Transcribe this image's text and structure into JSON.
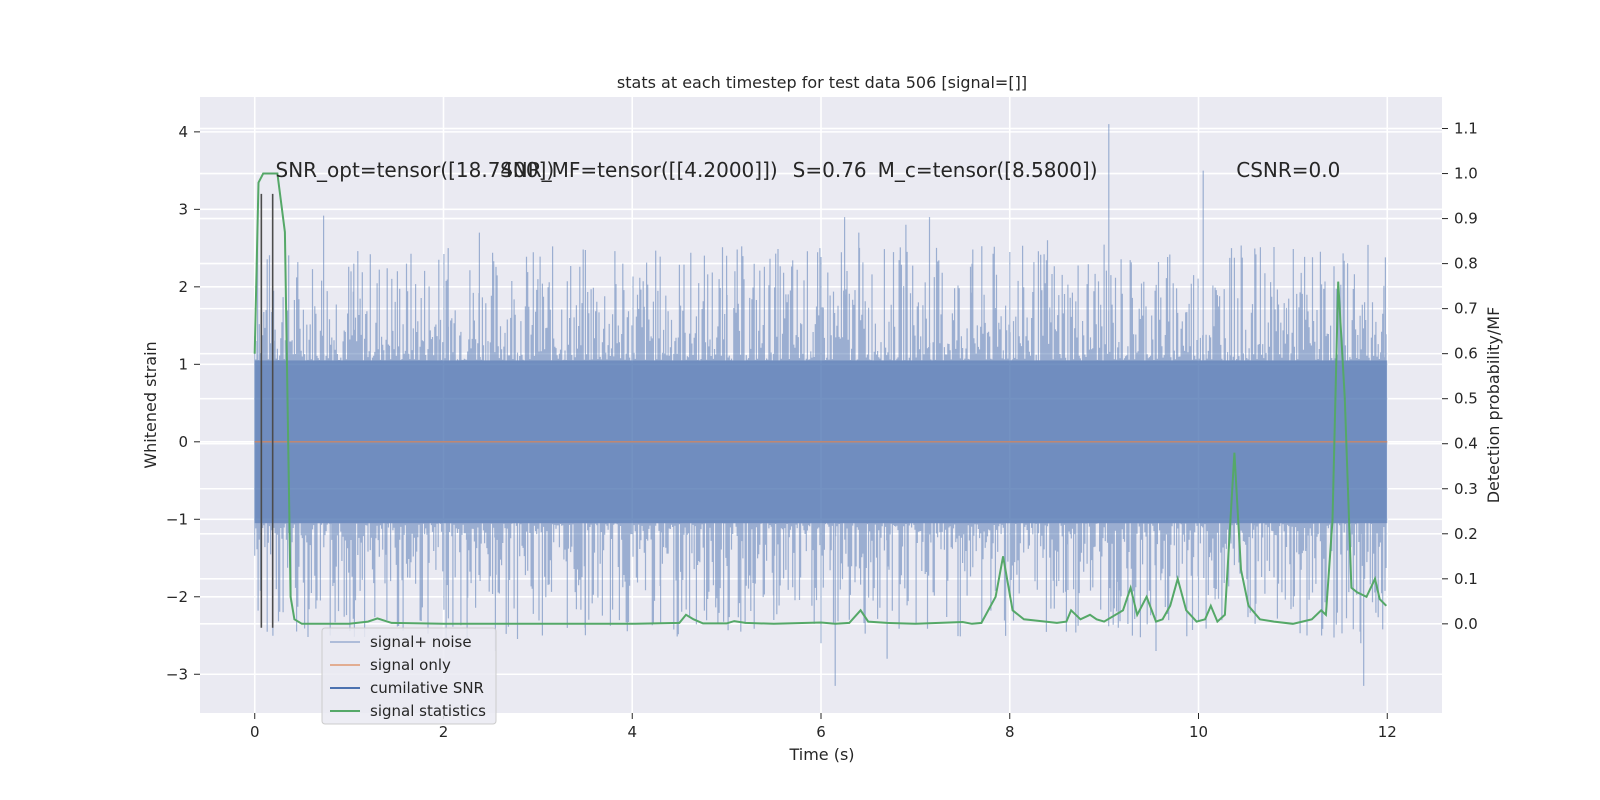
{
  "chart_data": {
    "type": "line",
    "title": "stats at each timestep for test data 506 [signal=[]]",
    "xlabel": "Time (s)",
    "ylabel": "Whitened strain",
    "y2label": "Detection probability/MF",
    "xlim": [
      -0.58,
      12.58
    ],
    "ylim": [
      -3.5,
      4.45
    ],
    "y2lim": [
      -0.198,
      1.17
    ],
    "xticks": [
      0,
      2,
      4,
      6,
      8,
      10,
      12
    ],
    "yticks": [
      -3,
      -2,
      -1,
      0,
      1,
      2,
      3,
      4
    ],
    "y2ticks": [
      0.0,
      0.1,
      0.2,
      0.3,
      0.4,
      0.5,
      0.6,
      0.7,
      0.8,
      0.9,
      1.0,
      1.1
    ],
    "grid": true,
    "legend_position": "lower-left",
    "annotations": [
      {
        "text": "SNR_opt=tensor([18.7400])",
        "x": 0.22,
        "y": 3.42
      },
      {
        "text": "SNR_MF=tensor([[4.2000]])",
        "x": 2.6,
        "y": 3.42
      },
      {
        "text": "S=0.76",
        "x": 5.7,
        "y": 3.42
      },
      {
        "text": "M_c=tensor([8.5800])",
        "x": 6.6,
        "y": 3.42
      },
      {
        "text": "CSNR=0.0",
        "x": 10.4,
        "y": 3.42
      }
    ],
    "series": [
      {
        "name": "signal+ noise",
        "color": "#4c72b0",
        "axis": "left",
        "x_range": [
          0,
          12
        ],
        "envelope_level": 1.05,
        "spikes": [
          [
            0.03,
            3.08
          ],
          [
            0.12,
            1.7
          ],
          [
            0.2,
            1.95
          ],
          [
            0.3,
            -2.2
          ],
          [
            0.45,
            1.55
          ],
          [
            0.73,
            2.92
          ],
          [
            0.8,
            -2.5
          ],
          [
            1.05,
            2.3
          ],
          [
            1.4,
            -2.3
          ],
          [
            1.95,
            2.35
          ],
          [
            2.05,
            2.5
          ],
          [
            2.25,
            -2.6
          ],
          [
            2.38,
            2.7
          ],
          [
            2.55,
            -2.7
          ],
          [
            3.0,
            2.1
          ],
          [
            3.5,
            -2.4
          ],
          [
            3.9,
            2.3
          ],
          [
            4.3,
            -2.35
          ],
          [
            5.0,
            2.4
          ],
          [
            5.15,
            -2.45
          ],
          [
            5.5,
            -2.3
          ],
          [
            6.0,
            -2.6
          ],
          [
            6.15,
            -3.15
          ],
          [
            6.25,
            2.9
          ],
          [
            6.4,
            2.7
          ],
          [
            6.7,
            -2.8
          ],
          [
            6.9,
            2.8
          ],
          [
            7.15,
            2.9
          ],
          [
            7.6,
            2.3
          ],
          [
            8.0,
            2.45
          ],
          [
            8.4,
            2.6
          ],
          [
            8.6,
            -2.45
          ],
          [
            9.05,
            4.1
          ],
          [
            9.15,
            -2.4
          ],
          [
            9.55,
            -2.7
          ],
          [
            10.0,
            -2.3
          ],
          [
            10.05,
            3.5
          ],
          [
            10.35,
            2.5
          ],
          [
            10.6,
            -2.35
          ],
          [
            11.15,
            -2.5
          ],
          [
            11.4,
            1.5
          ],
          [
            11.72,
            -2.6
          ],
          [
            11.75,
            -3.15
          ],
          [
            11.98,
            2.38
          ]
        ]
      },
      {
        "name": "signal only",
        "color": "#dd8452",
        "axis": "left",
        "x": [
          0,
          12
        ],
        "y": [
          0,
          0
        ]
      },
      {
        "name": "cumilative SNR",
        "color": "#4c4c4c",
        "axis": "left",
        "vlines": [
          0.07,
          0.19
        ],
        "vline_range": [
          -2.4,
          3.2
        ]
      },
      {
        "name": "signal statistics",
        "color": "#55a868",
        "axis": "right",
        "x": [
          0.0,
          0.04,
          0.09,
          0.16,
          0.24,
          0.32,
          0.38,
          0.42,
          0.5,
          0.7,
          1.0,
          1.2,
          1.3,
          1.45,
          2.0,
          3.0,
          4.0,
          4.5,
          4.57,
          4.65,
          4.75,
          5.0,
          5.08,
          5.2,
          5.5,
          6.0,
          6.15,
          6.3,
          6.42,
          6.5,
          6.7,
          7.0,
          7.5,
          7.6,
          7.7,
          7.85,
          7.93,
          8.03,
          8.15,
          8.5,
          8.6,
          8.65,
          8.75,
          8.85,
          8.92,
          9.0,
          9.2,
          9.28,
          9.35,
          9.45,
          9.55,
          9.62,
          9.7,
          9.78,
          9.87,
          9.98,
          10.07,
          10.13,
          10.2,
          10.28,
          10.38,
          10.45,
          10.53,
          10.65,
          10.8,
          11.0,
          11.1,
          11.2,
          11.3,
          11.35,
          11.42,
          11.48,
          11.55,
          11.62,
          11.68,
          11.78,
          11.87,
          11.92,
          11.99
        ],
        "y": [
          0.6,
          0.98,
          1.0,
          1.0,
          1.0,
          0.87,
          0.06,
          0.01,
          0.0,
          0.0,
          0.0,
          0.005,
          0.012,
          0.002,
          0.0,
          0.0,
          0.0,
          0.002,
          0.02,
          0.01,
          0.001,
          0.001,
          0.006,
          0.002,
          0.0,
          0.003,
          0.0,
          0.002,
          0.03,
          0.005,
          0.002,
          0.0,
          0.004,
          0.0,
          0.002,
          0.06,
          0.15,
          0.03,
          0.01,
          0.002,
          0.005,
          0.03,
          0.01,
          0.02,
          0.01,
          0.005,
          0.03,
          0.08,
          0.02,
          0.06,
          0.005,
          0.01,
          0.04,
          0.1,
          0.03,
          0.005,
          0.01,
          0.04,
          0.005,
          0.02,
          0.38,
          0.12,
          0.04,
          0.01,
          0.005,
          0.0,
          0.005,
          0.01,
          0.03,
          0.02,
          0.23,
          0.76,
          0.5,
          0.08,
          0.07,
          0.06,
          0.1,
          0.055,
          0.04
        ]
      }
    ]
  }
}
